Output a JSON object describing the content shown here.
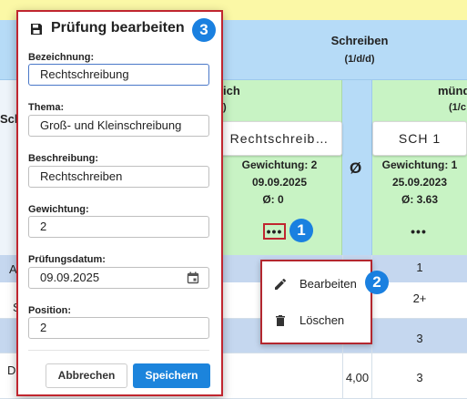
{
  "table": {
    "subject_title": "Schreiben",
    "subject_sub": "(1/d/d)",
    "partial_left_head": "ich",
    "partial_left_sub": ")",
    "partial_right_head": "münd",
    "partial_right_sub": "(1/c",
    "avg_header": "Ø",
    "left_partial_letters": [
      "Scl",
      "A",
      "S",
      "D"
    ],
    "exam1": {
      "label": "Rechtschreib…",
      "weight": "Gewichtung: 2",
      "date": "09.09.2025",
      "avg": "Ø:  0",
      "more": "•••"
    },
    "exam2": {
      "label": "SCH 1",
      "weight": "Gewichtung: 1",
      "date": "25.09.2023",
      "avg": "Ø:  3.63",
      "more": "•••"
    },
    "rows": [
      {
        "grade": "1",
        "avg": ""
      },
      {
        "grade": "2+",
        "avg": ""
      },
      {
        "grade": "3",
        "avg": ""
      },
      {
        "grade": "3",
        "avg": "4,00"
      }
    ]
  },
  "badges": {
    "one": "1",
    "two": "2",
    "three": "3"
  },
  "context_menu": {
    "items": [
      {
        "label": "Bearbeiten",
        "icon": "pencil-icon"
      },
      {
        "label": "Löschen",
        "icon": "trash-icon"
      }
    ]
  },
  "dialog": {
    "title": "Prüfung bearbeiten",
    "title_icon": "save-icon",
    "fields": {
      "bezeichnung_label": "Bezeichnung:",
      "bezeichnung_value": "Rechtschreibung",
      "thema_label": "Thema:",
      "thema_value": "Groß- und Kleinschreibung",
      "beschreibung_label": "Beschreibung:",
      "beschreibung_value": "Rechtschreiben",
      "gewichtung_label": "Gewichtung:",
      "gewichtung_value": "2",
      "datum_label": "Prüfungsdatum:",
      "datum_value": "09.09.2025",
      "position_label": "Position:",
      "position_value": "2"
    },
    "cancel_label": "Abbrechen",
    "save_label": "Speichern"
  },
  "colors": {
    "accent": "#1c84dc",
    "highlight_border": "#c0262f",
    "header_blue": "#b6dbf7",
    "exam_green": "#c8f3c4",
    "top_yellow": "#fbf8a6"
  }
}
